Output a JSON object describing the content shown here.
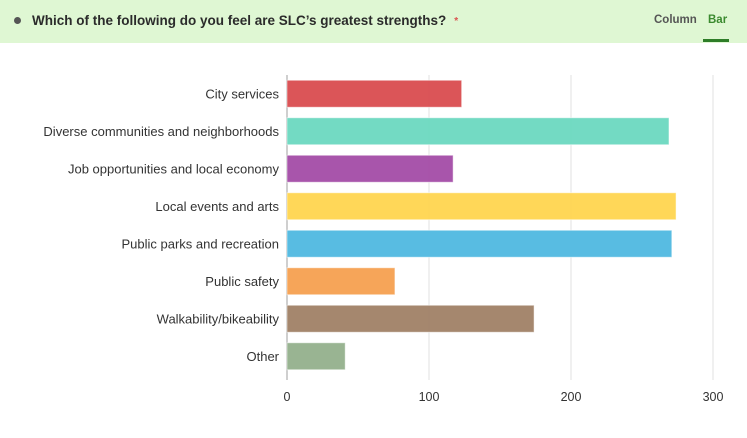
{
  "header": {
    "question": "Which of the following do you feel are SLC’s greatest strengths?",
    "required_marker": "*",
    "tabs": [
      {
        "label": "Column",
        "active": false
      },
      {
        "label": "Bar",
        "active": true
      }
    ]
  },
  "chart_data": {
    "type": "bar",
    "orientation": "horizontal",
    "title": "Which of the following do you feel are SLC’s greatest strengths?",
    "xlabel": "",
    "ylabel": "",
    "categories": [
      "City services",
      "Diverse communities and neighborhoods",
      "Job opportunities and local economy",
      "Local events and arts",
      "Public parks and recreation",
      "Public safety",
      "Walkability/bikeability",
      "Other"
    ],
    "values": [
      123,
      269,
      117,
      274,
      271,
      76,
      174,
      41
    ],
    "colors": [
      "#d94c4f",
      "#6cd8c0",
      "#a34ca6",
      "#ffd54f",
      "#4fb8e0",
      "#f5a050",
      "#a08166",
      "#94b08c"
    ],
    "xlim": [
      0,
      300
    ],
    "xticks": [
      0,
      100,
      200,
      300
    ],
    "xtick_labels": [
      "0",
      "100",
      "200",
      "300"
    ],
    "grid": true,
    "legend": "none"
  }
}
